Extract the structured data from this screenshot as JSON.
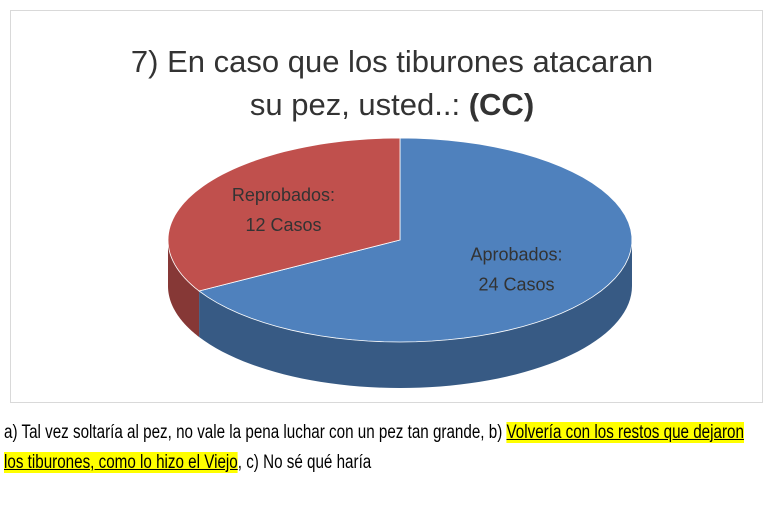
{
  "chart_data": {
    "type": "pie3d",
    "title": [
      "7) En caso que los tiburones atacaran",
      "su pez, usted..:"
    ],
    "title_emphasis": "(CC)",
    "categories": [
      "Aprobados:",
      "Reprobados:"
    ],
    "values": [
      24,
      12
    ],
    "value_labels": [
      "24 Casos",
      "12 Casos"
    ],
    "colors": [
      "#4f81bd",
      "#c0504d"
    ]
  },
  "caption": [
    {
      "text": "a) Tal vez soltaría al pez, no vale la pena luchar con un pez tan grande, b) ",
      "highlight": false
    },
    {
      "text": "Volvería con los restos que dejaron los tiburones, como lo hizo el Viejo",
      "highlight": true
    },
    {
      "text": ", c) No sé qué haría",
      "highlight": false
    }
  ],
  "highlight_color": "#ffff00"
}
